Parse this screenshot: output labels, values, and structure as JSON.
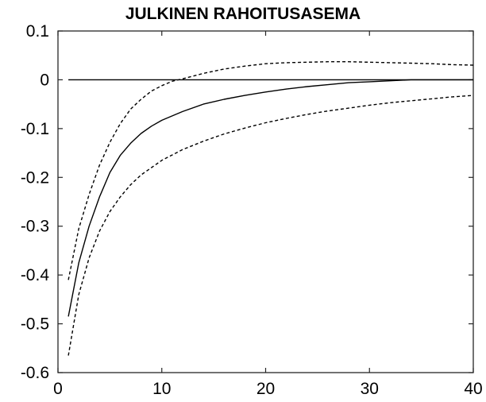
{
  "chart_data": {
    "type": "line",
    "title": "JULKINEN RAHOITUSASEMA",
    "xlabel": "",
    "ylabel": "",
    "xlim": [
      0,
      40
    ],
    "ylim": [
      -0.6,
      0.1
    ],
    "xticks": [
      "0",
      "10",
      "20",
      "30",
      "40"
    ],
    "yticks": [
      "0.1",
      "0",
      "-0.1",
      "-0.2",
      "-0.3",
      "-0.4",
      "-0.5",
      "-0.6"
    ],
    "grid": false,
    "legend": "none",
    "zero_line": 0,
    "series": [
      {
        "style": "solid",
        "x": [
          1,
          2,
          3,
          4,
          5,
          6,
          7,
          8,
          9,
          10,
          12,
          14,
          16,
          18,
          20,
          22,
          24,
          26,
          28,
          30,
          32,
          34,
          36,
          38,
          40
        ],
        "y": [
          -0.485,
          -0.375,
          -0.3,
          -0.24,
          -0.19,
          -0.155,
          -0.13,
          -0.11,
          -0.095,
          -0.083,
          -0.065,
          -0.05,
          -0.04,
          -0.032,
          -0.025,
          -0.019,
          -0.014,
          -0.01,
          -0.006,
          -0.004,
          -0.002,
          0,
          0,
          0,
          0
        ]
      },
      {
        "style": "dashed",
        "x": [
          1,
          2,
          3,
          4,
          5,
          6,
          7,
          8,
          9,
          10,
          11,
          12,
          14,
          16,
          18,
          20,
          22,
          24,
          26,
          28,
          30,
          32,
          34,
          36,
          38,
          40
        ],
        "y": [
          -0.41,
          -0.305,
          -0.235,
          -0.175,
          -0.128,
          -0.09,
          -0.06,
          -0.04,
          -0.023,
          -0.012,
          -0.003,
          0.002,
          0.013,
          0.022,
          0.028,
          0.033,
          0.035,
          0.036,
          0.037,
          0.037,
          0.036,
          0.035,
          0.034,
          0.033,
          0.031,
          0.03
        ]
      },
      {
        "style": "dashed",
        "x": [
          1,
          2,
          3,
          4,
          5,
          6,
          7,
          8,
          9,
          10,
          12,
          14,
          16,
          18,
          20,
          22,
          24,
          26,
          28,
          30,
          32,
          34,
          36,
          38,
          40
        ],
        "y": [
          -0.565,
          -0.44,
          -0.365,
          -0.31,
          -0.27,
          -0.24,
          -0.215,
          -0.195,
          -0.18,
          -0.165,
          -0.143,
          -0.126,
          -0.111,
          -0.099,
          -0.088,
          -0.079,
          -0.071,
          -0.064,
          -0.058,
          -0.052,
          -0.047,
          -0.043,
          -0.039,
          -0.035,
          -0.032
        ]
      }
    ]
  }
}
